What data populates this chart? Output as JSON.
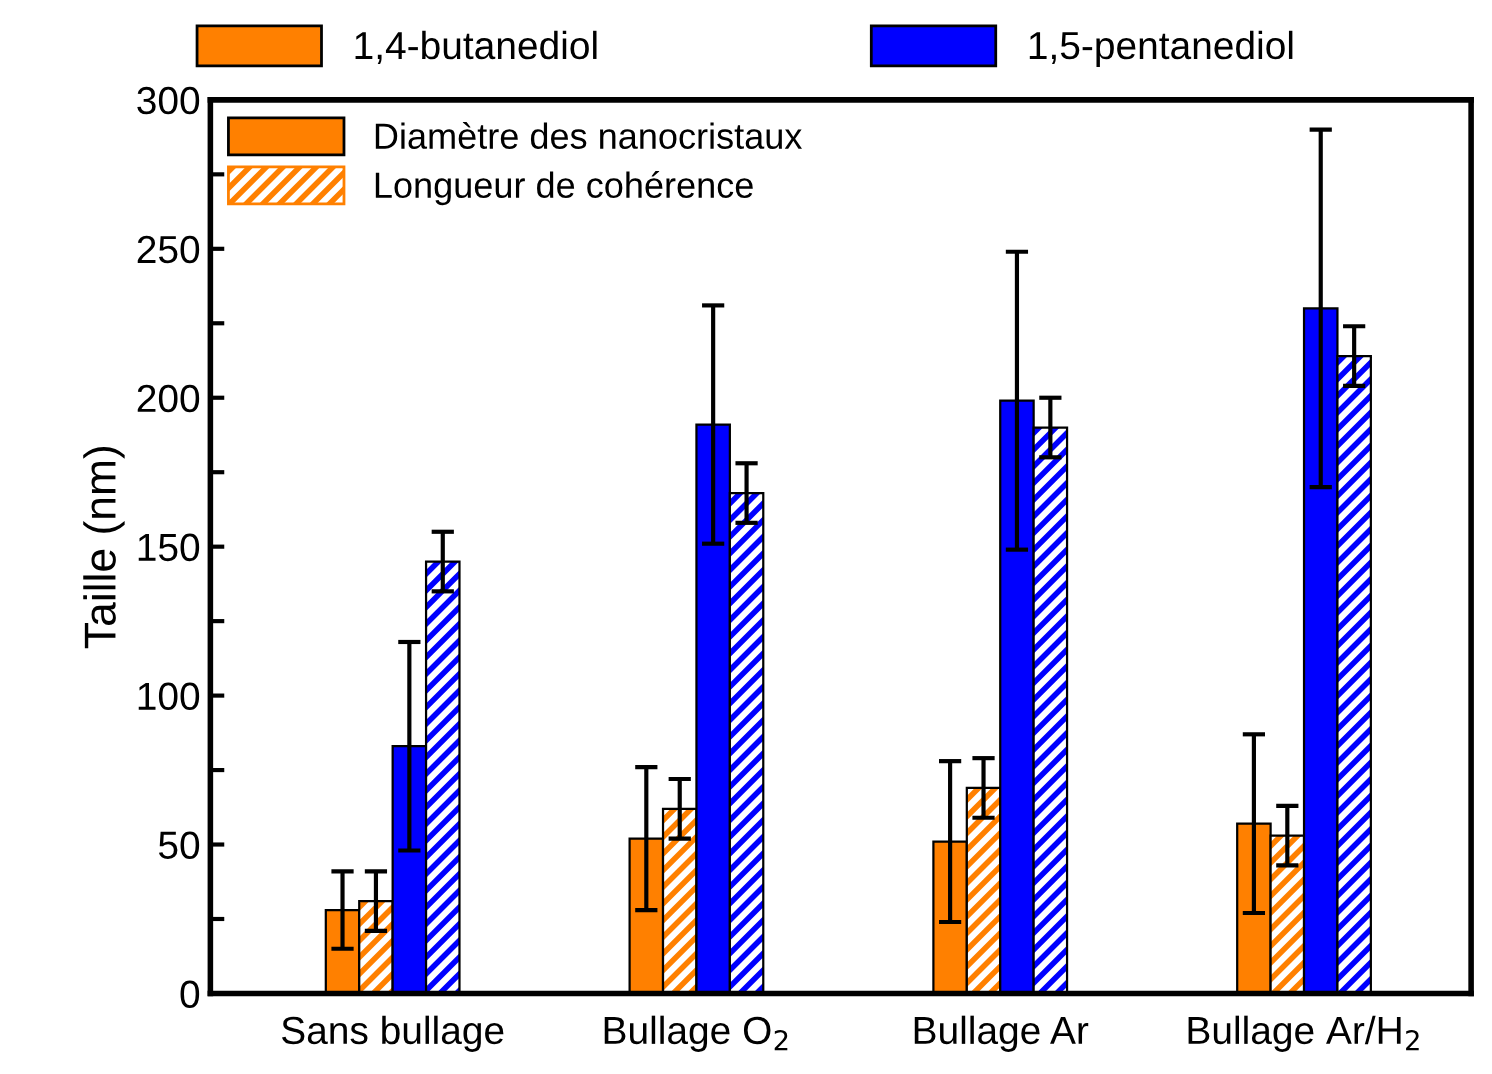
{
  "chart_data": {
    "type": "bar",
    "ylabel": "Taille (nm)",
    "categories": [
      "Sans bullage",
      "Bullage O$_{2}$",
      "Bullage Ar",
      "Bullage Ar/H$_{2}$"
    ],
    "series": [
      {
        "name": "1,4-butanediol",
        "color": "#ff8000",
        "values": [
          28,
          52,
          51,
          57
        ],
        "errors": [
          13,
          24,
          27,
          30
        ]
      },
      {
        "color": "#ff8000",
        "values": [
          31,
          62,
          69,
          53
        ],
        "errors": [
          10,
          10,
          10,
          10
        ]
      },
      {
        "name": "1,5-pentanediol",
        "color": "#0000ff",
        "values": [
          83,
          191,
          199,
          230
        ],
        "errors": [
          35,
          40,
          50,
          60
        ]
      },
      {
        "color": "#0000ff",
        "values": [
          145,
          168,
          190,
          214
        ],
        "errors": [
          10,
          10,
          10,
          10
        ]
      }
    ],
    "annotations": [
      "Diamètre des nanocristaux",
      "Longueur de cohérence"
    ],
    "ylim": [
      0,
      300
    ],
    "yticks": [
      0,
      {
        "value": 25,
        "label": null
      },
      50,
      {
        "value": 75,
        "label": null
      },
      100,
      {
        "value": 125,
        "label": null
      },
      150,
      {
        "value": 175,
        "label": null
      },
      200,
      {
        "value": 225,
        "label": null
      },
      250,
      {
        "value": 275,
        "label": null
      },
      300
    ],
    "legend": "top",
    "grid": false
  }
}
